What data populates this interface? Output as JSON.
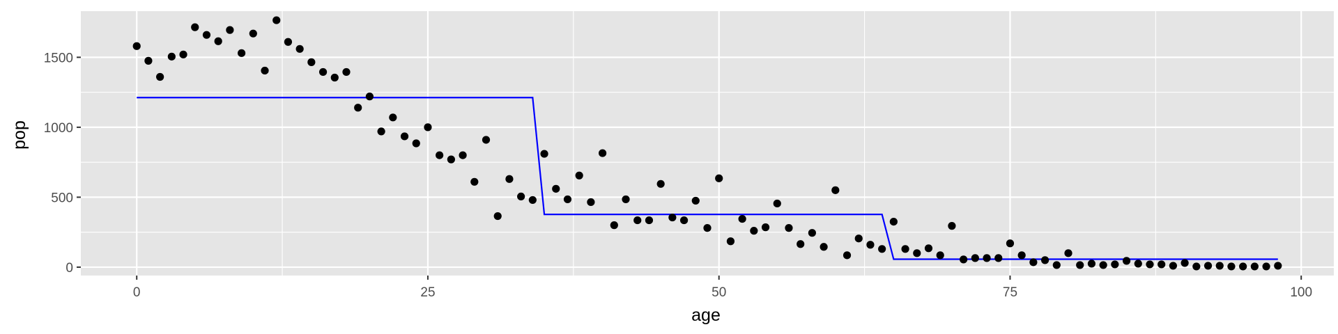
{
  "chart_data": {
    "type": "scatter",
    "xlabel": "age",
    "ylabel": "pop",
    "xlim": [
      -4.8,
      102.8
    ],
    "ylim": [
      -60,
      1830
    ],
    "x_ticks": [
      0,
      25,
      50,
      75,
      100
    ],
    "x_tick_labels": [
      "0",
      "25",
      "50",
      "75",
      "100"
    ],
    "y_ticks": [
      0,
      500,
      1000,
      1500
    ],
    "y_tick_labels": [
      "0",
      "500",
      "1000",
      "1500"
    ],
    "grid": true,
    "legend": "none",
    "colors": {
      "panel": "#e5e5e5",
      "grid": "#ffffff",
      "points": "#000000",
      "step_line": "#0000ff",
      "tick_text": "#4d4d4d",
      "tick_mark": "#333333"
    },
    "points": {
      "x": [
        0,
        1,
        2,
        3,
        4,
        5,
        6,
        7,
        8,
        9,
        10,
        11,
        12,
        13,
        14,
        15,
        16,
        17,
        18,
        19,
        20,
        21,
        22,
        23,
        24,
        25,
        26,
        27,
        28,
        29,
        30,
        31,
        32,
        33,
        34,
        35,
        36,
        37,
        38,
        39,
        40,
        41,
        42,
        43,
        44,
        45,
        46,
        47,
        48,
        49,
        50,
        51,
        52,
        53,
        54,
        55,
        56,
        57,
        58,
        59,
        60,
        61,
        62,
        63,
        64,
        65,
        66,
        67,
        68,
        69,
        70,
        71,
        72,
        73,
        74,
        75,
        76,
        77,
        78,
        79,
        80,
        81,
        82,
        83,
        84,
        85,
        86,
        87,
        88,
        89,
        90,
        91,
        92,
        93,
        94,
        95,
        96,
        97,
        98
      ],
      "y": [
        1580,
        1475,
        1360,
        1505,
        1520,
        1715,
        1660,
        1615,
        1695,
        1530,
        1670,
        1405,
        1765,
        1610,
        1560,
        1465,
        1395,
        1355,
        1395,
        1140,
        1220,
        970,
        1070,
        935,
        885,
        1000,
        800,
        770,
        800,
        610,
        910,
        365,
        630,
        505,
        480,
        810,
        560,
        485,
        655,
        465,
        815,
        300,
        485,
        335,
        335,
        595,
        355,
        335,
        475,
        280,
        635,
        185,
        345,
        260,
        285,
        455,
        280,
        165,
        245,
        145,
        550,
        85,
        205,
        160,
        130,
        325,
        130,
        100,
        135,
        85,
        295,
        55,
        65,
        65,
        65,
        170,
        85,
        35,
        50,
        15,
        100,
        15,
        25,
        15,
        20,
        45,
        25,
        20,
        20,
        10,
        30,
        5,
        10,
        10,
        5,
        5,
        5,
        5,
        10
      ]
    },
    "step_fit": {
      "x": [
        0,
        34,
        35,
        64,
        65,
        98
      ],
      "y": [
        1212,
        1212,
        377,
        377,
        57,
        57
      ]
    }
  }
}
